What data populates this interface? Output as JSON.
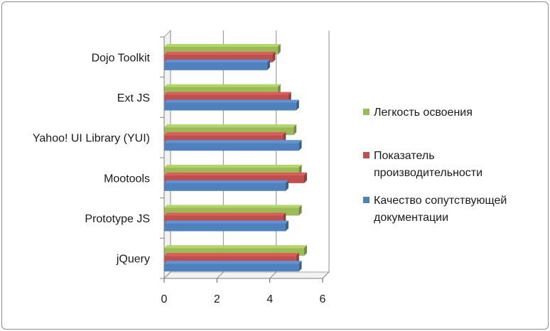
{
  "chart_data": {
    "type": "bar",
    "orientation": "horizontal",
    "style": "3d-clustered",
    "categories": [
      "jQuery",
      "Prototype JS",
      "Mootools",
      "Yahoo! UI Library (YUI)",
      "Ext JS",
      "Dojo Toolkit"
    ],
    "series": [
      {
        "name": "Качество сопутствующей документации",
        "color": "#4f81bd",
        "values": [
          5.1,
          4.6,
          4.6,
          5.1,
          5.0,
          3.9
        ]
      },
      {
        "name": "Показатель производительности",
        "color": "#c0504d",
        "values": [
          5.0,
          4.5,
          5.3,
          4.5,
          4.7,
          4.1
        ]
      },
      {
        "name": "Легкость освоения",
        "color": "#9bbb59",
        "values": [
          5.3,
          5.1,
          5.1,
          4.9,
          4.3,
          4.3
        ]
      }
    ],
    "xlim": [
      0,
      6
    ],
    "x_ticks": [
      "0",
      "2",
      "4",
      "6"
    ],
    "grid": "vertical",
    "legend": {
      "placement": "right",
      "entries": [
        {
          "lines": [
            "Легкость освоения"
          ],
          "color": "#9bbb59"
        },
        {
          "lines": [
            "Показатель",
            "производительности"
          ],
          "color": "#c0504d"
        },
        {
          "lines": [
            "Качество сопутствующей",
            "документации"
          ],
          "color": "#4f81bd"
        }
      ]
    }
  }
}
